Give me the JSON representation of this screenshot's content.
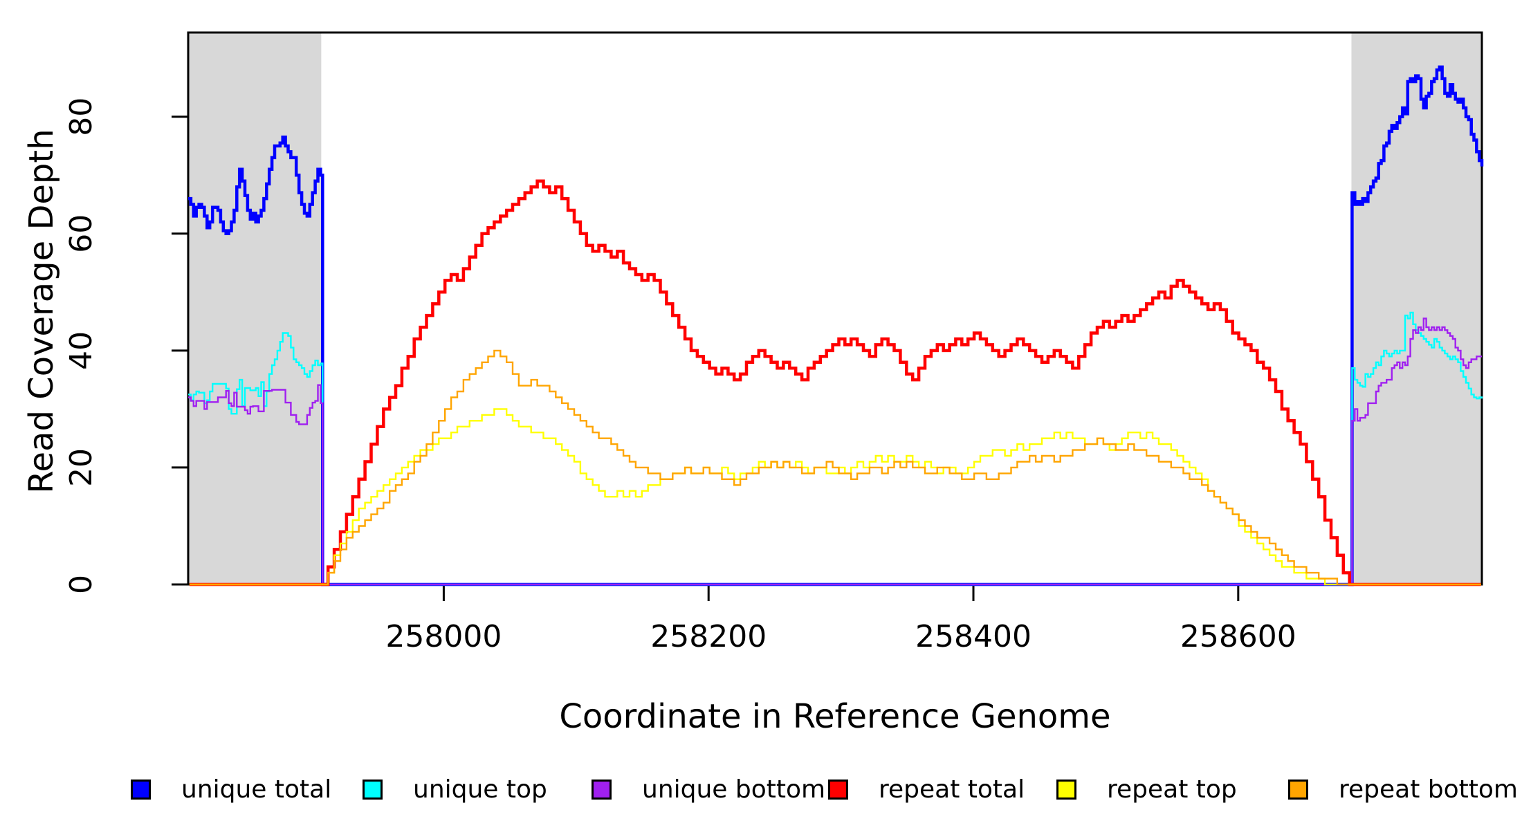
{
  "chart_data": {
    "type": "line",
    "title": "",
    "xlabel": "Coordinate in Reference Genome",
    "ylabel": "Read Coverage Depth",
    "x_ticks": [
      258000,
      258200,
      258400,
      258600
    ],
    "y_ticks": [
      0,
      20,
      40,
      60,
      80
    ],
    "xlim": [
      257807,
      258784
    ],
    "ylim": [
      0,
      94.4
    ],
    "grid": false,
    "plot_background": "#ffffff",
    "box_color": "#000000",
    "shaded_color": "#d8d8d8",
    "shaded_regions": [
      [
        257807,
        257907.5
      ],
      [
        258685.5,
        258784
      ]
    ],
    "legend_position": "bottom",
    "legend": [
      {
        "label": "unique total",
        "color": "#0000ff"
      },
      {
        "label": "unique top",
        "color": "#00ffff"
      },
      {
        "label": "unique bottom",
        "color": "#a020f0"
      },
      {
        "label": "repeat total",
        "color": "#ff0000"
      },
      {
        "label": "repeat top",
        "color": "#ffff00"
      },
      {
        "label": "repeat bottom",
        "color": "#ffa500"
      }
    ],
    "series": [
      {
        "name": "unique-total",
        "label": "unique total",
        "color": "#0000ff",
        "lwd": 4.5,
        "segments": [
          {
            "x0": 257807,
            "dx": 2.0408,
            "values": [
              66,
              65,
              63,
              64.5,
              65,
              64.5,
              63,
              61,
              62,
              64.5,
              64.5,
              64,
              62,
              60.5,
              60,
              60.5,
              62,
              64,
              68,
              71,
              69,
              66.5,
              64,
              62.5,
              63.5,
              62,
              63,
              64,
              66,
              68.5,
              71,
              73,
              75,
              75,
              75.5,
              76.5,
              75,
              74,
              73,
              73,
              70,
              67,
              65,
              63.5,
              63,
              65,
              67,
              69,
              71,
              70
            ]
          },
          {
            "x0": 257908.5,
            "dx": 775.5,
            "values": [
              0,
              0
            ]
          },
          {
            "x0": 258686,
            "dx": 2.0,
            "values": [
              67,
              65,
              65.5,
              65,
              66,
              65.5,
              67,
              68,
              69,
              69.5,
              72,
              72.5,
              75,
              75.5,
              77.5,
              78.5,
              78,
              79,
              80,
              81.5,
              80.5,
              86,
              86.5,
              86,
              87,
              86.5,
              83,
              81.5,
              83.5,
              84,
              86,
              86.5,
              88,
              88.5,
              86.5,
              84,
              83.5,
              85.5,
              84,
              83,
              82.5,
              83,
              81.5,
              80,
              79.5,
              77,
              76,
              74,
              72.5,
              71.5
            ]
          }
        ]
      },
      {
        "name": "unique-top",
        "label": "unique top",
        "color": "#00ffff",
        "lwd": 2.4,
        "segments": [
          {
            "x0": 257807,
            "dx": 2.0408,
            "values": [
              32.5,
              31.5,
              32.5,
              33,
              32.8,
              32.8,
              31,
              31.5,
              33,
              34.3,
              34.3,
              34.3,
              34.3,
              34.3,
              33.5,
              30,
              29.2,
              29.2,
              33.4,
              35,
              30.5,
              33.6,
              33.6,
              33.2,
              33.2,
              33.6,
              32.2,
              34.6,
              30.5,
              33,
              36,
              37.5,
              38.5,
              40,
              41.5,
              43,
              43,
              42.5,
              40.5,
              38.5,
              38,
              37.5,
              37,
              36,
              35.5,
              36.5,
              37.5,
              38.3,
              37.5,
              37.8
            ]
          },
          {
            "x0": 257908.5,
            "dx": 775.5,
            "values": [
              0,
              0
            ]
          },
          {
            "x0": 258686,
            "dx": 2.0,
            "values": [
              37,
              35,
              34.5,
              34,
              33.8,
              36,
              35.5,
              36,
              37,
              38,
              37.5,
              39,
              40,
              39.5,
              39,
              39.5,
              40,
              39.5,
              40,
              40,
              46,
              45.5,
              46.5,
              44.5,
              43.5,
              43,
              42.5,
              42,
              41.5,
              41,
              40.5,
              42,
              41.5,
              40.5,
              40,
              39.5,
              39,
              38.5,
              39,
              38.5,
              38,
              36.5,
              35.5,
              34.5,
              33.5,
              32.5,
              32,
              31.8,
              32,
              31.8
            ]
          }
        ]
      },
      {
        "name": "unique-bottom",
        "label": "unique bottom",
        "color": "#a020f0",
        "lwd": 2.4,
        "segments": [
          {
            "x0": 257807,
            "dx": 2.0408,
            "values": [
              32,
              31.4,
              30.5,
              31.4,
              31.4,
              31.4,
              30,
              31.2,
              31.2,
              31.2,
              31.2,
              32,
              32,
              32,
              33.1,
              31,
              30.5,
              32.8,
              30.4,
              30.4,
              30.4,
              29.8,
              29.2,
              30.4,
              30.5,
              30.5,
              29.6,
              29.6,
              33.1,
              33.1,
              33.1,
              33.3,
              33.3,
              33.3,
              33.3,
              33.3,
              31.1,
              31.1,
              29,
              29,
              27.8,
              27.4,
              27.4,
              27.4,
              29,
              30.2,
              31.1,
              31.4,
              34.1,
              31
            ]
          },
          {
            "x0": 257908.5,
            "dx": 775.5,
            "values": [
              0,
              0
            ]
          },
          {
            "x0": 258686,
            "dx": 2.0,
            "values": [
              28,
              30,
              28,
              28.5,
              28.5,
              29,
              31,
              31,
              31,
              33,
              34,
              34.5,
              34.5,
              35,
              35,
              37,
              37.5,
              38,
              37,
              38,
              37.5,
              39,
              42,
              43.5,
              43,
              44,
              43.5,
              45.5,
              44,
              43.5,
              44,
              43.5,
              44,
              43.5,
              44,
              43.5,
              43,
              42.5,
              42,
              40.5,
              40,
              38.5,
              37.5,
              37,
              38,
              38.5,
              38.5,
              39,
              39,
              39
            ]
          }
        ]
      },
      {
        "name": "repeat-total",
        "label": "repeat total",
        "color": "#ff0000",
        "lwd": 4.5,
        "segments": [
          {
            "x0": 257808,
            "dx": 99.6,
            "values": [
              0,
              0
            ]
          },
          {
            "x0": 257908,
            "dx": 4.647,
            "values": [
              0,
              3,
              6,
              9,
              12,
              15,
              18,
              21,
              24,
              27,
              30,
              32,
              34,
              37,
              39,
              42,
              44,
              46,
              48,
              50,
              52,
              53,
              52,
              54,
              56,
              58,
              60,
              61,
              62,
              63,
              64,
              65,
              66,
              67,
              68,
              69,
              68,
              67,
              68,
              66,
              64,
              62,
              60,
              58,
              57,
              58,
              57,
              56,
              57,
              55,
              54,
              53,
              52,
              53,
              52,
              50,
              48,
              46,
              44,
              42,
              40,
              39,
              38,
              37,
              36,
              37,
              36,
              35,
              36,
              38,
              39,
              40,
              39,
              38,
              37,
              38,
              37,
              36,
              35,
              37,
              38,
              39,
              40,
              41,
              42,
              41,
              42,
              41,
              40,
              39,
              41,
              42,
              41,
              40,
              38,
              36,
              35,
              37,
              39,
              40,
              41,
              40,
              41,
              42,
              41,
              42,
              43,
              42,
              41,
              40,
              39,
              40,
              41,
              42,
              41,
              40,
              39,
              38,
              39,
              40,
              39,
              38,
              37,
              39,
              41,
              43,
              44,
              45,
              44,
              45,
              46,
              45,
              46,
              47,
              48,
              49,
              50,
              49,
              51,
              52,
              51,
              50,
              49,
              48,
              47,
              48,
              47,
              45,
              43,
              42,
              41,
              40,
              38,
              37,
              35,
              33,
              30,
              28,
              26,
              24,
              21,
              18,
              15,
              11,
              8,
              5,
              2,
              0
            ]
          },
          {
            "x0": 258684.3,
            "dx": 99,
            "values": [
              0,
              0
            ]
          }
        ]
      },
      {
        "name": "repeat-top",
        "label": "repeat top",
        "color": "#ffff00",
        "lwd": 2.4,
        "segments": [
          {
            "x0": 257808,
            "dx": 99.6,
            "values": [
              0,
              0
            ]
          },
          {
            "x0": 257908,
            "dx": 4.647,
            "values": [
              0,
              2,
              5,
              7,
              9,
              11,
              13,
              14,
              15,
              16,
              17,
              18,
              19,
              20,
              21,
              22,
              23,
              23,
              24,
              25,
              25,
              26,
              27,
              27,
              28,
              28,
              29,
              29,
              30,
              30,
              29,
              28,
              27,
              27,
              26,
              26,
              25,
              25,
              24,
              23,
              22,
              21,
              19,
              18,
              17,
              16,
              15,
              15,
              16,
              15,
              16,
              15,
              16,
              17,
              17,
              18,
              18,
              19,
              19,
              20,
              19,
              19,
              20,
              19,
              19,
              20,
              19,
              18,
              19,
              19,
              20,
              21,
              20,
              21,
              20,
              21,
              20,
              21,
              20,
              19,
              20,
              20,
              19,
              19,
              20,
              19,
              20,
              21,
              20,
              21,
              22,
              21,
              22,
              21,
              21,
              22,
              21,
              20,
              21,
              20,
              19,
              20,
              20,
              19,
              19,
              20,
              21,
              22,
              22,
              23,
              23,
              22,
              23,
              24,
              23,
              24,
              24,
              25,
              25,
              26,
              25,
              26,
              25,
              25,
              24,
              24,
              25,
              24,
              23,
              24,
              25,
              26,
              26,
              25,
              26,
              25,
              24,
              24,
              23,
              22,
              21,
              20,
              19,
              18,
              16,
              15,
              14,
              13,
              12,
              10,
              9,
              8,
              7,
              6,
              5,
              4,
              3,
              3,
              2,
              2,
              1,
              1,
              1,
              0,
              0,
              0,
              0,
              0
            ]
          },
          {
            "x0": 258684.3,
            "dx": 99,
            "values": [
              0,
              0
            ]
          }
        ]
      },
      {
        "name": "repeat-bottom",
        "label": "repeat bottom",
        "color": "#ffa500",
        "lwd": 2.4,
        "segments": [
          {
            "x0": 257808,
            "dx": 99.6,
            "values": [
              0,
              0
            ]
          },
          {
            "x0": 257908,
            "dx": 4.647,
            "values": [
              0,
              2,
              4,
              6,
              8,
              9,
              10,
              11,
              12,
              13,
              14,
              16,
              17,
              18,
              19,
              21,
              22,
              24,
              26,
              28,
              30,
              32,
              33,
              35,
              36,
              37,
              38,
              39,
              40,
              39,
              38,
              36,
              34,
              34,
              35,
              34,
              34,
              33,
              32,
              31,
              30,
              29,
              28,
              27,
              26,
              25,
              25,
              24,
              23,
              22,
              21,
              20,
              20,
              19,
              19,
              18,
              18,
              19,
              19,
              20,
              19,
              19,
              20,
              19,
              19,
              18,
              18,
              17,
              18,
              19,
              19,
              20,
              20,
              21,
              20,
              21,
              20,
              20,
              19,
              19,
              20,
              20,
              21,
              20,
              19,
              19,
              18,
              19,
              19,
              20,
              20,
              19,
              20,
              21,
              20,
              21,
              20,
              20,
              19,
              19,
              20,
              20,
              19,
              19,
              18,
              18,
              19,
              19,
              18,
              18,
              19,
              19,
              20,
              21,
              21,
              22,
              21,
              22,
              22,
              21,
              22,
              22,
              23,
              23,
              24,
              24,
              25,
              24,
              24,
              23,
              23,
              24,
              23,
              23,
              22,
              22,
              21,
              21,
              20,
              20,
              19,
              18,
              18,
              17,
              16,
              15,
              14,
              13,
              12,
              11,
              10,
              9,
              8,
              8,
              7,
              6,
              5,
              4,
              3,
              3,
              2,
              2,
              1,
              1,
              1,
              0,
              0,
              0
            ]
          },
          {
            "x0": 258684.3,
            "dx": 99,
            "values": [
              0,
              0
            ]
          }
        ]
      }
    ]
  }
}
